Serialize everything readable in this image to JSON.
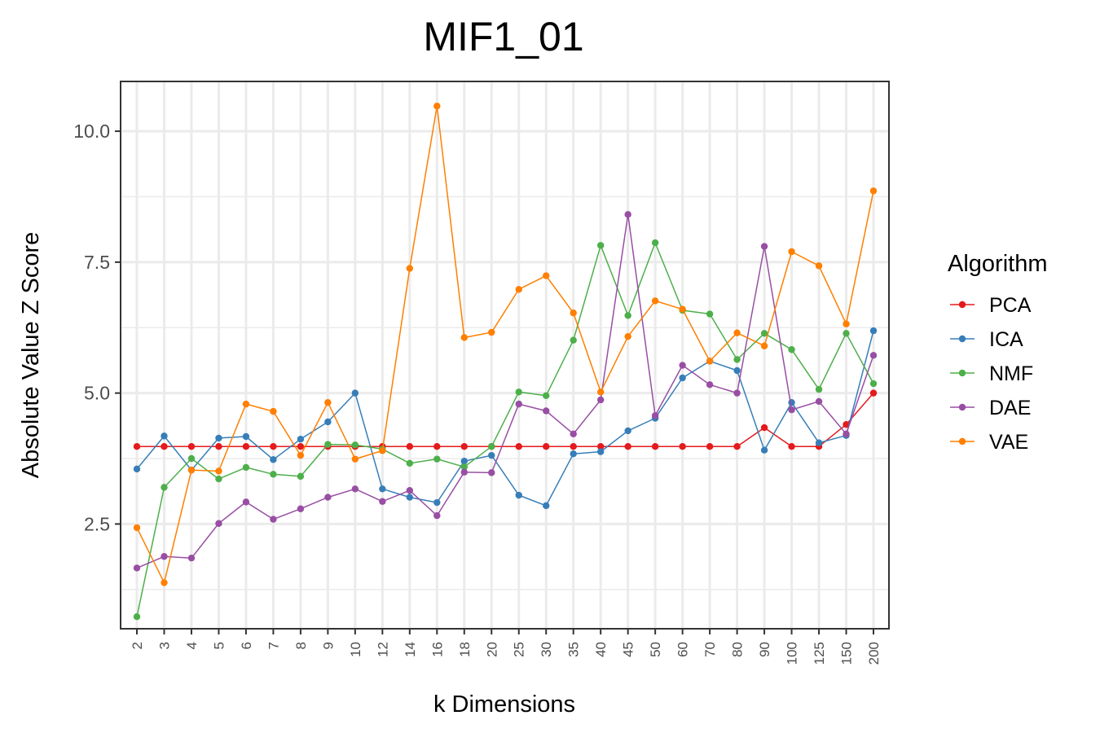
{
  "chart_data": {
    "type": "line",
    "title": "MIF1_01",
    "xlabel": "k Dimensions",
    "ylabel": "Absolute Value Z Score",
    "categories": [
      "2",
      "3",
      "4",
      "5",
      "6",
      "7",
      "8",
      "9",
      "10",
      "12",
      "14",
      "16",
      "18",
      "20",
      "25",
      "30",
      "35",
      "40",
      "45",
      "50",
      "60",
      "70",
      "80",
      "90",
      "100",
      "125",
      "150",
      "200"
    ],
    "ylim": [
      0.5,
      10.95
    ],
    "yticks": [
      2.5,
      5.0,
      7.5,
      10.0
    ],
    "ytick_labels": [
      "2.5",
      "5.0",
      "7.5",
      "10.0"
    ],
    "grid": true,
    "legend": {
      "title": "Algorithm",
      "position": "right"
    },
    "series": [
      {
        "name": "PCA",
        "color": "#e41a1c",
        "values": [
          3.98,
          3.98,
          3.98,
          3.98,
          3.98,
          3.98,
          3.98,
          3.98,
          3.98,
          3.98,
          3.98,
          3.98,
          3.98,
          3.98,
          3.98,
          3.98,
          3.98,
          3.98,
          3.98,
          3.98,
          3.98,
          3.98,
          3.98,
          4.34,
          3.98,
          3.98,
          4.4,
          5.0
        ]
      },
      {
        "name": "ICA",
        "color": "#377eb8",
        "values": [
          3.55,
          4.18,
          3.53,
          4.14,
          4.17,
          3.73,
          4.12,
          4.45,
          5.0,
          3.17,
          3.01,
          2.91,
          3.7,
          3.81,
          3.05,
          2.85,
          3.84,
          3.88,
          4.28,
          4.52,
          5.29,
          5.61,
          5.43,
          3.91,
          4.82,
          4.05,
          4.19,
          6.19
        ]
      },
      {
        "name": "NMF",
        "color": "#4daf4a",
        "values": [
          0.73,
          3.2,
          3.75,
          3.36,
          3.58,
          3.45,
          3.41,
          4.02,
          4.01,
          3.93,
          3.66,
          3.74,
          3.59,
          3.98,
          5.02,
          4.95,
          6.01,
          7.82,
          6.48,
          7.87,
          6.58,
          6.51,
          5.64,
          6.14,
          5.83,
          5.07,
          6.14,
          5.18
        ]
      },
      {
        "name": "DAE",
        "color": "#984ea3",
        "values": [
          1.66,
          1.88,
          1.85,
          2.51,
          2.92,
          2.59,
          2.79,
          3.01,
          3.17,
          2.93,
          3.14,
          2.66,
          3.49,
          3.48,
          4.79,
          4.66,
          4.22,
          4.87,
          8.41,
          4.57,
          5.53,
          5.16,
          5.0,
          7.8,
          4.68,
          4.84,
          4.22,
          5.72
        ]
      },
      {
        "name": "VAE",
        "color": "#ff7f00",
        "values": [
          2.43,
          1.38,
          3.53,
          3.51,
          4.79,
          4.65,
          3.81,
          4.82,
          3.74,
          3.9,
          7.38,
          10.48,
          6.06,
          6.16,
          6.98,
          7.24,
          6.53,
          5.02,
          6.08,
          6.76,
          6.6,
          5.61,
          6.15,
          5.9,
          7.7,
          7.43,
          6.32,
          8.86
        ]
      }
    ]
  }
}
